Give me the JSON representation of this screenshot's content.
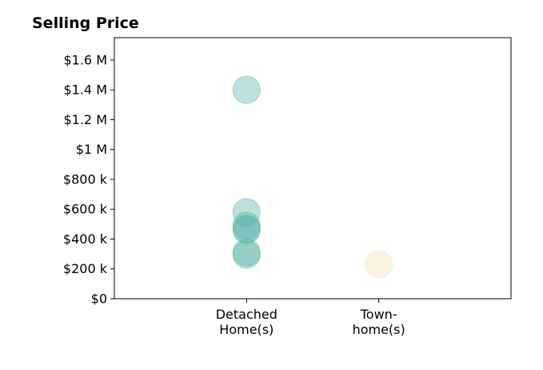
{
  "chart_data": {
    "type": "scatter",
    "title": "Selling Price",
    "xlabel": "",
    "ylabel": "",
    "categories": [
      [
        "Detached",
        "Home(s)"
      ],
      [
        "Town-",
        "home(s)"
      ]
    ],
    "y_ticks": [
      0,
      200000,
      400000,
      600000,
      800000,
      1000000,
      1200000,
      1400000,
      1600000
    ],
    "y_tick_labels": [
      "$0",
      "$200 k",
      "$400 k",
      "$600 k",
      "$800 k",
      "$1 M",
      "$1.2 M",
      "$1.4 M",
      "$1.6 M"
    ],
    "ylim": [
      0,
      1750000
    ],
    "xlim": [
      -1,
      2
    ],
    "grid": false,
    "series": [
      {
        "category_index": 0,
        "color": "#5bb5a8",
        "values": [
          1400000,
          580000,
          490000,
          470000,
          460000,
          310000,
          295000
        ]
      },
      {
        "category_index": 1,
        "color": "#f2dfb1",
        "values": [
          230000
        ]
      }
    ]
  }
}
